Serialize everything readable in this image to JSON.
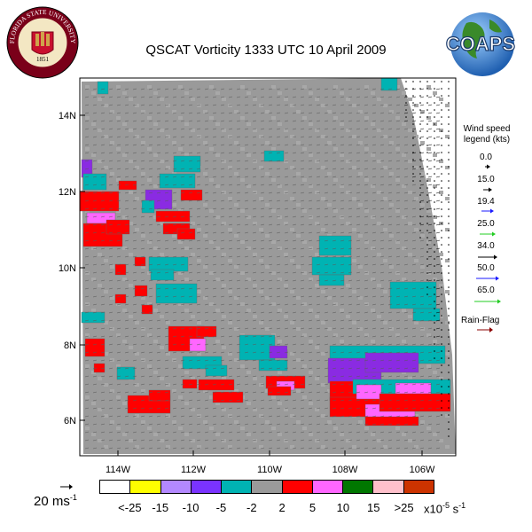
{
  "title": "QSCAT Vorticity 1333 UTC 10 April 2009",
  "logos": {
    "fsu": {
      "text": "FLORIDA STATE UNIVERSITY",
      "year": "1851"
    },
    "coaps": {
      "text": "COAPS"
    }
  },
  "map": {
    "lat_labels": [
      "14N",
      "12N",
      "10N",
      "8N",
      "6N"
    ],
    "lon_labels": [
      "114W",
      "112W",
      "110W",
      "108W",
      "106W"
    ],
    "colors": {
      "background_grid": "#9a9a9a",
      "cyan": "#00b3b3",
      "purple": "#8a2be2",
      "red": "#ff0000",
      "magenta": "#ff66ff"
    }
  },
  "wind_legend": {
    "title": "Wind speed legend (kts)",
    "items": [
      {
        "value": "0.0",
        "color": "#000000"
      },
      {
        "value": "15.0",
        "color": "#000000"
      },
      {
        "value": "19.4",
        "color": "#1a1aff"
      },
      {
        "value": "25.0",
        "color": "#22cc22"
      },
      {
        "value": "34.0",
        "color": "#000000"
      },
      {
        "value": "50.0",
        "color": "#1a1aff"
      },
      {
        "value": "65.0",
        "color": "#22cc22"
      }
    ],
    "rain_flag_label": "Rain-Flag",
    "rain_flag_color": "#8b0000"
  },
  "scale_arrow": {
    "label": "20 ms",
    "exponent": "-1"
  },
  "colorbar": {
    "colors": [
      "#ffffff",
      "#ffff00",
      "#b388ff",
      "#7a33ff",
      "#00b3b3",
      "#9a9a9a",
      "#ff0000",
      "#ff66ff",
      "#007700",
      "#ffc0cb",
      "#cc3300"
    ],
    "tick_labels": [
      "<-25",
      "-15",
      "-10",
      "-5",
      "-2",
      "2",
      "5",
      "10",
      "15",
      ">25"
    ],
    "units_prefix": "x10",
    "units_exp": "-5",
    "units_suffix": " s",
    "units_exp2": "-1"
  }
}
